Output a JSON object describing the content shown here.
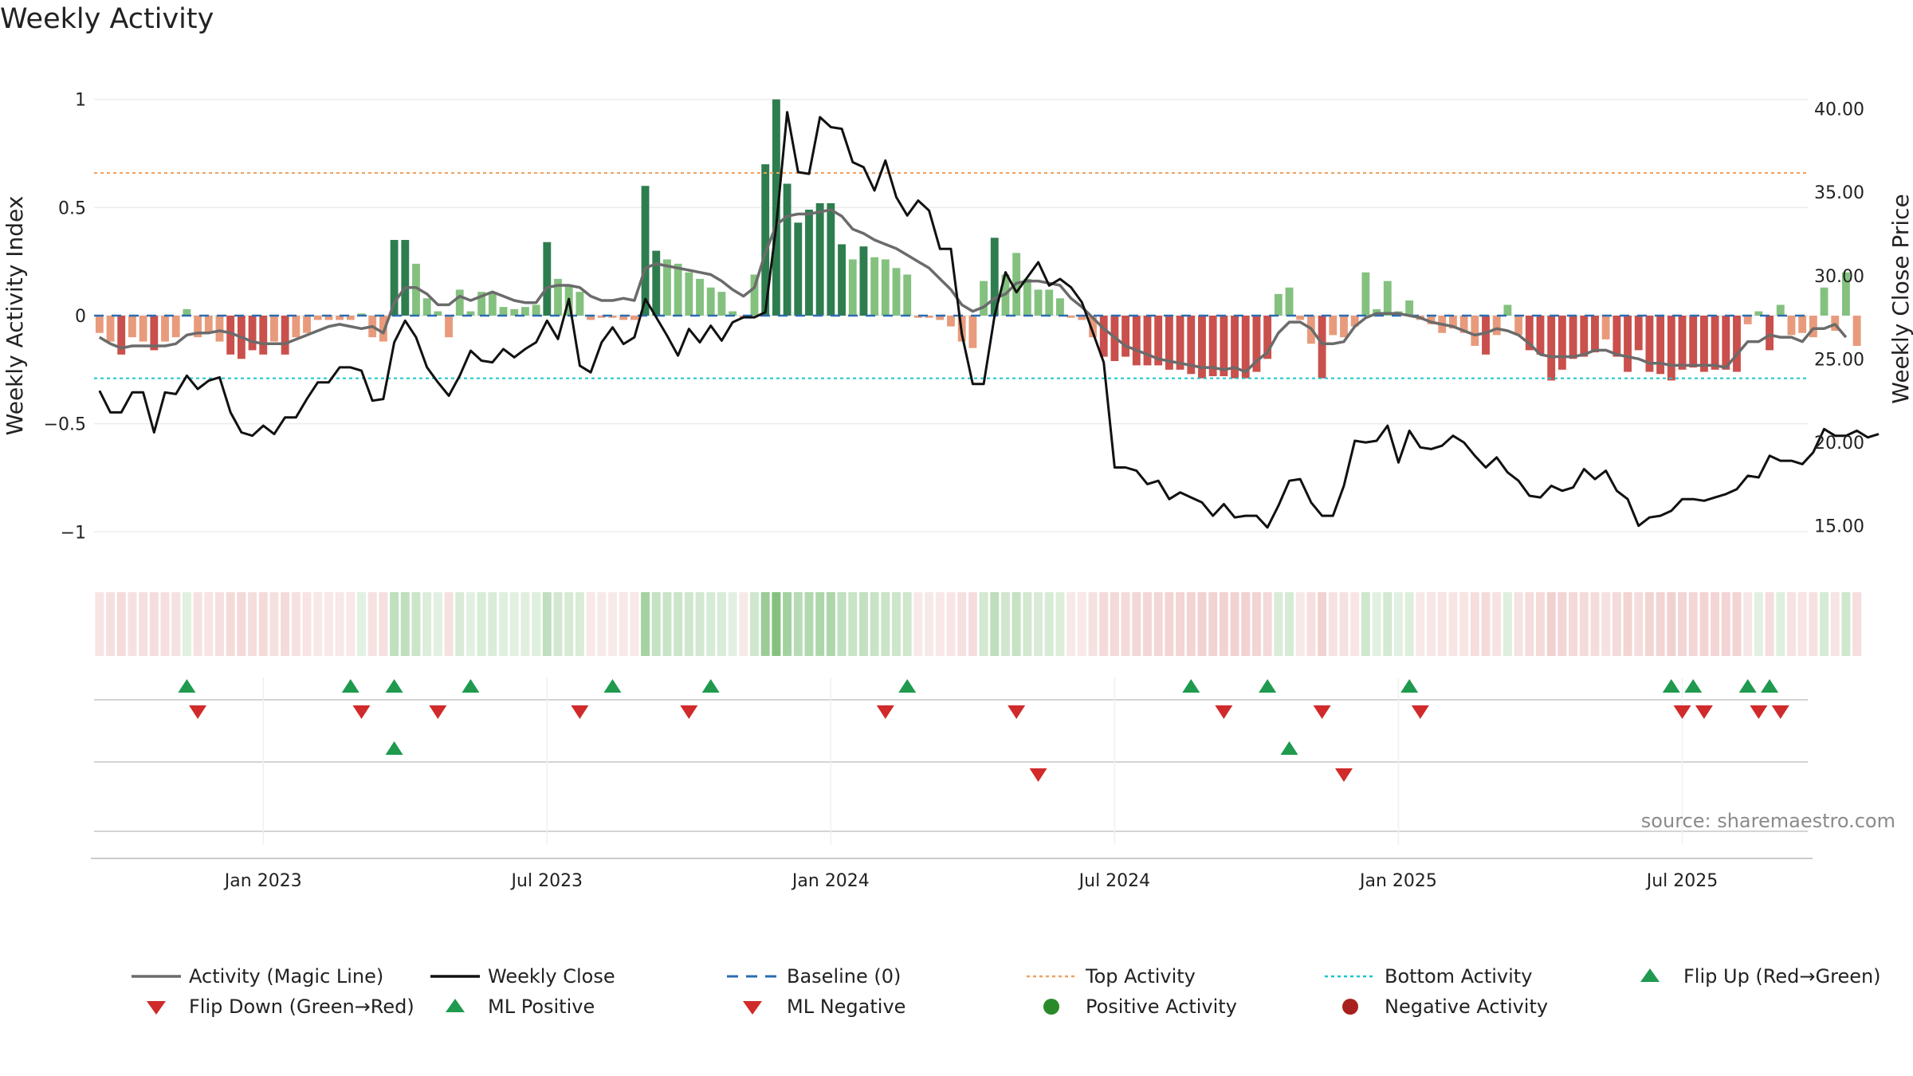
{
  "chart_data": {
    "type": "bar",
    "title": "Weekly Activity",
    "ylabel_left": "Weekly Activity Index",
    "ylabel_right": "Weekly Close Price",
    "yticks_left": [
      1,
      0.5,
      0,
      -0.5,
      -1
    ],
    "ytick_labels_left": [
      "1",
      "0.5",
      "0",
      "−0.5",
      "−1"
    ],
    "yticks_right": [
      40,
      35,
      30,
      25,
      20,
      15
    ],
    "ytick_labels_right": [
      "40.00",
      "35.00",
      "30.00",
      "25.00",
      "20.00",
      "15.00"
    ],
    "ylim_left": [
      -1.08,
      1.08
    ],
    "ylim_right": [
      13.6,
      41.6
    ],
    "xlim": [
      0,
      157
    ],
    "xticks": [
      {
        "week": 15,
        "label": "Jan 2023"
      },
      {
        "week": 41,
        "label": "Jul 2023"
      },
      {
        "week": 67,
        "label": "Jan 2024"
      },
      {
        "week": 93,
        "label": "Jul 2024"
      },
      {
        "week": 119,
        "label": "Jan 2025"
      },
      {
        "week": 145,
        "label": "Jul 2025"
      }
    ],
    "reference_lines": {
      "baseline": 0,
      "top_activity": 0.66,
      "bottom_activity": -0.29
    },
    "activity_bars": [
      -0.08,
      -0.12,
      -0.18,
      -0.1,
      -0.12,
      -0.16,
      -0.12,
      -0.1,
      0.03,
      -0.1,
      -0.08,
      -0.12,
      -0.18,
      -0.2,
      -0.16,
      -0.18,
      -0.12,
      -0.18,
      -0.1,
      -0.08,
      -0.02,
      -0.02,
      -0.02,
      -0.02,
      0.01,
      -0.1,
      -0.12,
      0.35,
      0.35,
      0.24,
      0.08,
      0.02,
      -0.1,
      0.12,
      0.02,
      0.11,
      0.11,
      0.04,
      0.03,
      0.04,
      0.05,
      0.34,
      0.17,
      0.14,
      0.11,
      -0.02,
      -0.01,
      -0.01,
      -0.02,
      -0.02,
      0.6,
      0.3,
      0.26,
      0.24,
      0.2,
      0.17,
      0.13,
      0.11,
      0.02,
      -0.01,
      0.19,
      0.7,
      1.0,
      0.61,
      0.43,
      0.49,
      0.52,
      0.52,
      0.33,
      0.26,
      0.32,
      0.27,
      0.26,
      0.22,
      0.19,
      -0.01,
      -0.01,
      -0.02,
      -0.05,
      -0.12,
      -0.15,
      0.16,
      0.36,
      0.19,
      0.29,
      0.17,
      0.12,
      0.12,
      0.08,
      -0.01,
      -0.02,
      -0.1,
      -0.19,
      -0.21,
      -0.19,
      -0.23,
      -0.23,
      -0.23,
      -0.25,
      -0.25,
      -0.27,
      -0.29,
      -0.28,
      -0.28,
      -0.29,
      -0.29,
      -0.26,
      -0.2,
      0.1,
      0.13,
      -0.02,
      -0.13,
      -0.29,
      -0.09,
      -0.1,
      -0.05,
      0.2,
      0.03,
      0.16,
      0.02,
      0.07,
      -0.02,
      -0.04,
      -0.08,
      -0.06,
      -0.08,
      -0.14,
      -0.18,
      -0.09,
      0.05,
      -0.09,
      -0.16,
      -0.18,
      -0.3,
      -0.25,
      -0.2,
      -0.19,
      -0.17,
      -0.11,
      -0.19,
      -0.26,
      -0.16,
      -0.26,
      -0.27,
      -0.3,
      -0.25,
      -0.24,
      -0.26,
      -0.25,
      -0.25,
      -0.26,
      -0.04,
      0.02,
      -0.16,
      0.05,
      -0.09,
      -0.08,
      -0.1,
      0.13,
      -0.07,
      0.2,
      -0.14
    ],
    "magic_line": [
      -0.1,
      -0.13,
      -0.15,
      -0.14,
      -0.14,
      -0.14,
      -0.14,
      -0.13,
      -0.09,
      -0.08,
      -0.08,
      -0.07,
      -0.08,
      -0.1,
      -0.12,
      -0.13,
      -0.13,
      -0.13,
      -0.11,
      -0.09,
      -0.07,
      -0.05,
      -0.04,
      -0.05,
      -0.06,
      -0.05,
      -0.08,
      0.06,
      0.13,
      0.13,
      0.1,
      0.05,
      0.05,
      0.09,
      0.07,
      0.09,
      0.11,
      0.09,
      0.07,
      0.06,
      0.06,
      0.13,
      0.14,
      0.14,
      0.13,
      0.09,
      0.07,
      0.07,
      0.08,
      0.07,
      0.22,
      0.24,
      0.23,
      0.22,
      0.21,
      0.2,
      0.19,
      0.16,
      0.12,
      0.09,
      0.13,
      0.29,
      0.42,
      0.46,
      0.47,
      0.47,
      0.48,
      0.49,
      0.46,
      0.4,
      0.38,
      0.35,
      0.33,
      0.31,
      0.28,
      0.25,
      0.22,
      0.17,
      0.12,
      0.05,
      0.02,
      0.04,
      0.08,
      0.1,
      0.15,
      0.16,
      0.16,
      0.15,
      0.14,
      0.08,
      0.04,
      -0.01,
      -0.06,
      -0.1,
      -0.14,
      -0.16,
      -0.18,
      -0.2,
      -0.21,
      -0.22,
      -0.23,
      -0.24,
      -0.24,
      -0.25,
      -0.24,
      -0.26,
      -0.21,
      -0.17,
      -0.08,
      -0.03,
      -0.03,
      -0.06,
      -0.13,
      -0.13,
      -0.12,
      -0.05,
      -0.01,
      0.01,
      0.01,
      0.01,
      0.0,
      -0.01,
      -0.03,
      -0.04,
      -0.05,
      -0.07,
      -0.09,
      -0.08,
      -0.06,
      -0.07,
      -0.09,
      -0.13,
      -0.18,
      -0.19,
      -0.19,
      -0.19,
      -0.18,
      -0.16,
      -0.16,
      -0.18,
      -0.19,
      -0.2,
      -0.22,
      -0.22,
      -0.23,
      -0.23,
      -0.23,
      -0.23,
      -0.23,
      -0.24,
      -0.18,
      -0.12,
      -0.12,
      -0.09,
      -0.1,
      -0.1,
      -0.12,
      -0.06,
      -0.06,
      -0.04,
      -0.1
    ],
    "weekly_close": [
      23.1,
      21.8,
      21.8,
      23.0,
      23.0,
      20.6,
      23.0,
      22.9,
      24.0,
      23.2,
      23.7,
      23.9,
      21.8,
      20.6,
      20.4,
      21.0,
      20.5,
      21.5,
      21.5,
      22.6,
      23.6,
      23.6,
      24.5,
      24.5,
      24.3,
      22.5,
      22.6,
      26.0,
      27.3,
      26.3,
      24.5,
      23.6,
      22.8,
      24.0,
      25.5,
      24.9,
      24.8,
      25.6,
      25.1,
      25.6,
      26.0,
      27.3,
      26.2,
      28.6,
      24.6,
      24.2,
      26.0,
      26.9,
      25.9,
      26.3,
      28.6,
      27.5,
      26.4,
      25.2,
      26.8,
      26.0,
      27.0,
      26.1,
      27.2,
      27.5,
      27.5,
      27.8,
      33.0,
      39.8,
      36.2,
      36.1,
      39.5,
      38.9,
      38.8,
      36.8,
      36.5,
      35.1,
      36.9,
      34.7,
      33.6,
      34.5,
      33.9,
      31.6,
      31.6,
      26.5,
      23.5,
      23.5,
      27.6,
      30.2,
      29.0,
      29.9,
      30.8,
      29.4,
      29.8,
      29.3,
      28.4,
      26.6,
      24.8,
      18.5,
      18.5,
      18.3,
      17.5,
      17.7,
      16.6,
      17.0,
      16.7,
      16.4,
      15.6,
      16.3,
      15.5,
      15.6,
      15.6,
      14.9,
      16.2,
      17.7,
      17.8,
      16.4,
      15.6,
      15.6,
      17.4,
      20.1,
      20.0,
      20.1,
      21.0,
      18.8,
      20.7,
      19.7,
      19.6,
      19.8,
      20.4,
      20.0,
      19.2,
      18.5,
      19.1,
      18.2,
      17.7,
      16.8,
      16.7,
      17.4,
      17.1,
      17.3,
      18.4,
      17.8,
      18.3,
      17.1,
      16.6,
      15.0,
      15.5,
      15.6,
      15.9,
      16.6,
      16.6,
      16.5,
      16.7,
      16.9,
      17.2,
      18.0,
      17.9,
      19.2,
      18.9,
      18.9,
      18.7,
      19.4,
      20.8,
      20.4,
      20.4,
      20.7,
      20.3,
      20.5
    ],
    "flip_up_weeks": [
      8,
      23,
      27,
      34,
      47,
      56,
      74,
      100,
      107,
      120,
      144,
      146,
      151,
      153
    ],
    "flip_down_weeks": [
      9,
      24,
      31,
      44,
      54,
      72,
      84,
      103,
      112,
      121,
      145,
      147,
      152,
      154
    ],
    "ml_positive_weeks": [
      27,
      109
    ],
    "ml_negative_weeks": [
      86,
      114
    ],
    "legend": [
      "Activity (Magic Line)",
      "Weekly Close",
      "Baseline (0)",
      "Top Activity",
      "Bottom Activity",
      "Flip Up (Red→Green)",
      "Flip Down (Green→Red)",
      "ML Positive",
      "ML Negative",
      "Positive Activity",
      "Negative Activity"
    ]
  },
  "colors": {
    "pos_strong": "#2e7d4f",
    "pos_light": "#84c17f",
    "neg_strong": "#c9504c",
    "neg_light": "#e89b7c",
    "magic_line": "#6b6b6b",
    "close_line": "#111111",
    "baseline": "#2b6cb0",
    "top_activity": "#f0a060",
    "bottom_activity": "#19c6cf",
    "flip_up": "#1f9a4e",
    "flip_down": "#d12a2a",
    "positive_dot": "#2a8a2a",
    "negative_dot": "#a8201e"
  },
  "source": "source: sharemaestro.com"
}
